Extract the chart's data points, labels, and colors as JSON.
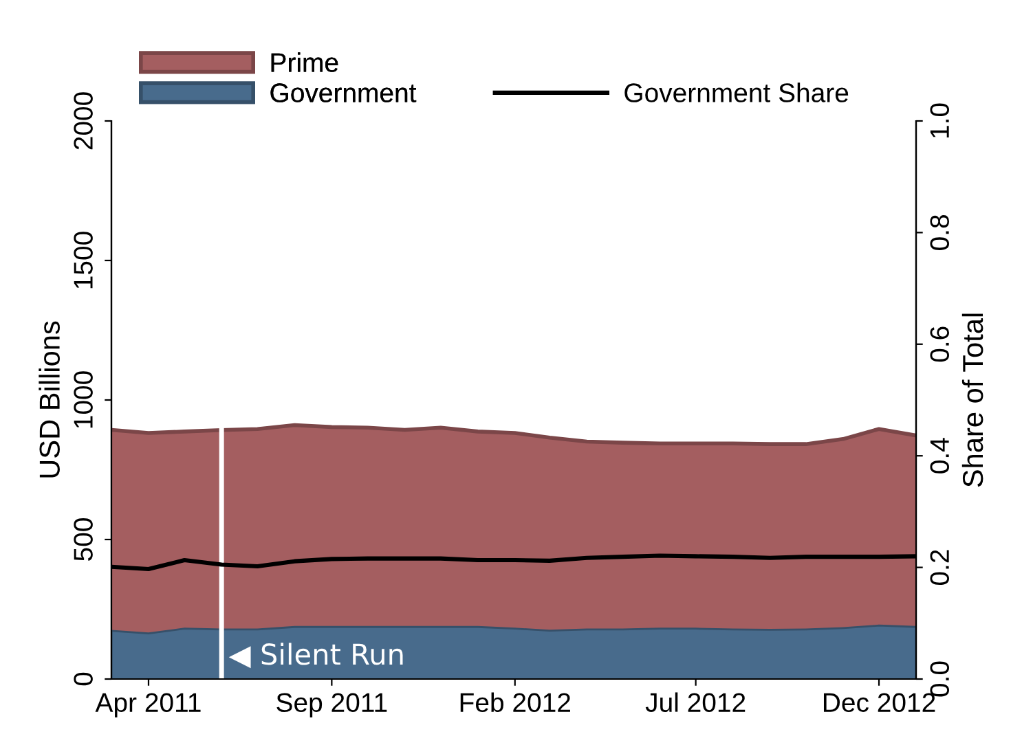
{
  "chart_data": {
    "type": "area",
    "stacked": true,
    "x": [
      "2011-03",
      "2011-04",
      "2011-05",
      "2011-06",
      "2011-07",
      "2011-08",
      "2011-09",
      "2011-10",
      "2011-11",
      "2011-12",
      "2012-01",
      "2012-02",
      "2012-03",
      "2012-04",
      "2012-05",
      "2012-06",
      "2012-07",
      "2012-08",
      "2012-09",
      "2012-10",
      "2012-11",
      "2012-12",
      "2013-01"
    ],
    "series": [
      {
        "name": "Government",
        "color": "#486b8c",
        "values": [
          176,
          167,
          184,
          181,
          181,
          190,
          190,
          190,
          190,
          190,
          190,
          184,
          177,
          181,
          181,
          184,
          184,
          181,
          180,
          181,
          186,
          195,
          190
        ]
      },
      {
        "name": "Prime",
        "color": "#a45e60",
        "values": [
          717,
          715,
          703,
          711,
          715,
          720,
          713,
          711,
          703,
          711,
          697,
          698,
          688,
          670,
          666,
          660,
          660,
          663,
          662,
          661,
          674,
          701,
          683
        ]
      },
      {
        "name": "Government Share",
        "type": "line",
        "axis": "y2",
        "color": "#000000",
        "values": [
          0.201,
          0.197,
          0.213,
          0.205,
          0.202,
          0.211,
          0.215,
          0.216,
          0.216,
          0.216,
          0.213,
          0.213,
          0.212,
          0.217,
          0.219,
          0.221,
          0.22,
          0.219,
          0.217,
          0.219,
          0.219,
          0.219,
          0.22
        ]
      }
    ],
    "xlim": [
      "2011-03",
      "2013-01"
    ],
    "xticks": [
      {
        "value": "2011-04",
        "label": "Apr 2011"
      },
      {
        "value": "2011-09",
        "label": "Sep 2011"
      },
      {
        "value": "2012-02",
        "label": "Feb 2012"
      },
      {
        "value": "2012-07",
        "label": "Jul 2012"
      },
      {
        "value": "2012-12",
        "label": "Dec 2012"
      }
    ],
    "ylim": [
      0,
      2000
    ],
    "yticks": [
      0,
      500,
      1000,
      1500,
      2000
    ],
    "y2lim": [
      0,
      1
    ],
    "y2ticks": [
      {
        "value": 0,
        "label": "0.0"
      },
      {
        "value": 0.2,
        "label": "0.2"
      },
      {
        "value": 0.4,
        "label": "0.4"
      },
      {
        "value": 0.6,
        "label": "0.6"
      },
      {
        "value": 0.8,
        "label": "0.8"
      },
      {
        "value": 1,
        "label": "1.0"
      }
    ],
    "ylabel": "USD Billions",
    "y2label": "Share of Total",
    "ref_lines": [
      {
        "axis": "x",
        "value": "2011-06",
        "label": "◀ Silent Run",
        "color": "#ffffff"
      }
    ],
    "legend": "top",
    "grid": false
  }
}
